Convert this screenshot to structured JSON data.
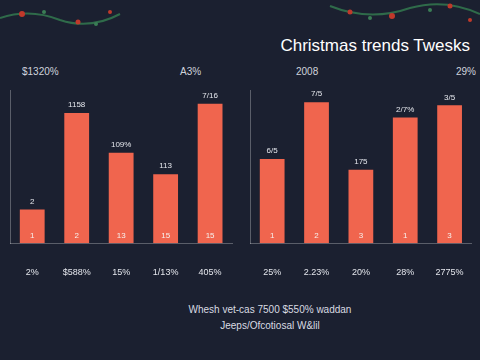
{
  "page": {
    "title": "Christmas trends Twesks",
    "footer": [
      "Whesh vet-cas 7500 $550% waddan",
      "Jeeps/Ofcotiosal W&lil"
    ]
  },
  "chart_data": [
    {
      "type": "bar",
      "categories": [
        "2%",
        "$588%",
        "15%",
        "1/13%",
        "405%"
      ],
      "values": [
        22,
        85,
        59,
        45,
        91
      ],
      "color": "#f0654e",
      "ylim": [
        0,
        100
      ],
      "grid": false,
      "tick_labels": "x",
      "annotations": {
        "header": [
          "$1320%",
          "A3%"
        ],
        "above": [
          "2",
          "1158",
          "109%",
          "113",
          "7/16"
        ],
        "inside": [
          "1",
          "2",
          "13",
          "15",
          "15"
        ]
      }
    },
    {
      "type": "bar",
      "categories": [
        "25%",
        "2.23%",
        "20%",
        "28%",
        "2775%"
      ],
      "values": [
        55,
        92,
        48,
        82,
        90
      ],
      "color": "#f0654e",
      "ylim": [
        0,
        100
      ],
      "grid": false,
      "tick_labels": "x",
      "annotations": {
        "header": [
          "2008",
          "29%"
        ],
        "above": [
          "6/5",
          "7/5",
          "175",
          "2/7%",
          "3/5"
        ],
        "inside": [
          "1",
          "2",
          "3",
          "1",
          "3"
        ]
      }
    }
  ]
}
